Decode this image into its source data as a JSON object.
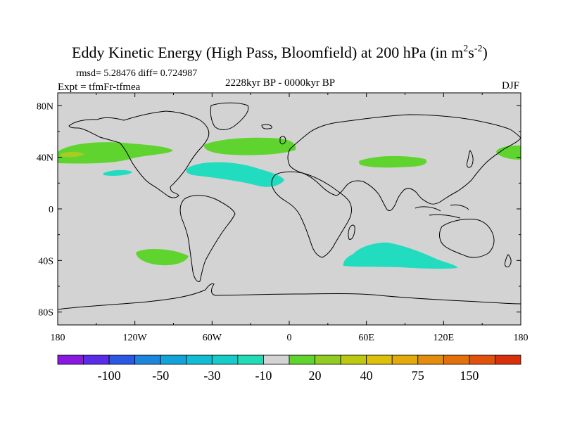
{
  "title": {
    "main": "Eddy Kinetic Energy (High Pass, Bloomfield) at 200 hPa (in m",
    "sup1": "2",
    "mid": "s",
    "sup2": "-2",
    "close": ")"
  },
  "stats": "rmsd= 5.28476 diff= 0.724987",
  "experiment": "Expt = tfmFr-tfmea",
  "period": "2228kyr BP - 0000kyr BP",
  "season": "DJF",
  "lat_labels": [
    "80N",
    "40N",
    "0",
    "40S",
    "80S"
  ],
  "lon_labels": [
    "180",
    "120W",
    "60W",
    "0",
    "60E",
    "120E",
    "180"
  ],
  "colors": {
    "land_bg": "#d3d3d3",
    "coast": "#000000",
    "green": "#5fd42f",
    "cyan": "#22dcc0",
    "yellowgreen": "#aacc22"
  },
  "colorbar": {
    "colors": [
      "#8a18e0",
      "#5a2ce8",
      "#2a58e2",
      "#1a86dc",
      "#12a4d8",
      "#12bcd4",
      "#16ccc8",
      "#22dcb8",
      "#d3d3d3",
      "#5fd42f",
      "#92cc22",
      "#bcc812",
      "#dcc00c",
      "#e4aa0c",
      "#e48c0c",
      "#e4700c",
      "#e0520c",
      "#d8300c"
    ],
    "labels": [
      "-100",
      "-50",
      "-30",
      "-10",
      "20",
      "40",
      "75",
      "150"
    ]
  },
  "map_data": {
    "projection": "cylindrical-equidistant",
    "lon_range": [
      -180,
      180
    ],
    "lat_range": [
      -90,
      90
    ],
    "anomaly_regions": [
      {
        "name": "north-pacific-east",
        "type": "positive",
        "color": "green",
        "approx_center": [
          -135,
          42
        ]
      },
      {
        "name": "north-atlantic",
        "type": "positive",
        "color": "green",
        "approx_center": [
          -40,
          49
        ]
      },
      {
        "name": "central-asia",
        "type": "positive",
        "color": "green",
        "approx_center": [
          60,
          37
        ]
      },
      {
        "name": "north-pacific-west",
        "type": "positive",
        "color": "green",
        "approx_center": [
          170,
          42
        ]
      },
      {
        "name": "subtropical-atlantic",
        "type": "negative",
        "color": "cyan",
        "approx_center": [
          -35,
          30
        ]
      },
      {
        "name": "subtropical-pacific",
        "type": "negative",
        "color": "cyan",
        "approx_center": [
          -140,
          28
        ]
      },
      {
        "name": "south-pacific",
        "type": "positive",
        "color": "green",
        "approx_center": [
          -105,
          -36
        ]
      },
      {
        "name": "southern-indian-ocean",
        "type": "negative",
        "color": "cyan",
        "approx_center": [
          75,
          -37
        ]
      }
    ]
  }
}
